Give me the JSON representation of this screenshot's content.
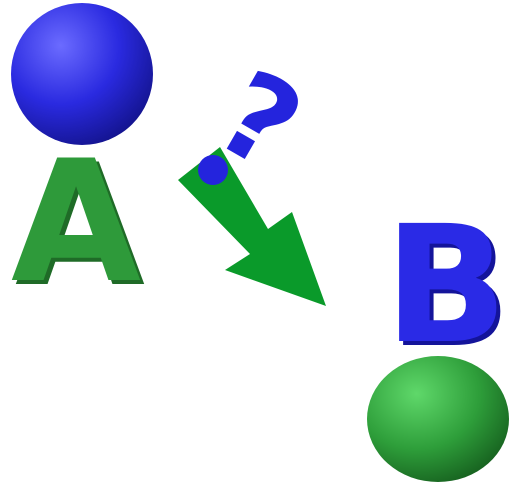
{
  "nodes": {
    "a": {
      "label": "A",
      "label_color": "#2e9a3a",
      "sphere_color": "#2323d8"
    },
    "b": {
      "label": "B",
      "label_color": "#2a2ae6",
      "sphere_color": "#2e9e3a"
    }
  },
  "connector": {
    "arrow_color": "#0a9a2a",
    "question_mark": "?",
    "question_color": "#2424dd"
  }
}
